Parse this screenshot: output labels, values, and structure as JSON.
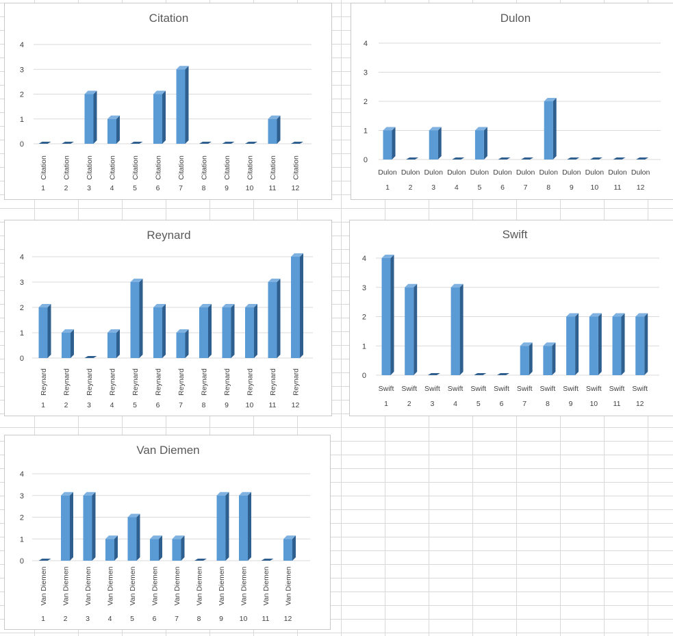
{
  "colors": {
    "bar_front": "#5b9bd5",
    "bar_side": "#2e5f8e",
    "bar_top": "#7fb2e0",
    "gridline": "#d9d9d9",
    "text": "#404040"
  },
  "chart_data": [
    {
      "type": "bar",
      "title": "Citation",
      "series_label": "Citation",
      "categories": [
        "1",
        "2",
        "3",
        "4",
        "5",
        "6",
        "7",
        "8",
        "9",
        "10",
        "11",
        "12"
      ],
      "values": [
        0,
        0,
        2,
        1,
        0,
        2,
        3,
        0,
        0,
        0,
        1,
        0
      ],
      "ylim": [
        0,
        4
      ],
      "yticks": [
        0,
        1,
        2,
        3,
        4
      ],
      "grid": true,
      "label_rotation": "vertical"
    },
    {
      "type": "bar",
      "title": "Dulon",
      "series_label": "Dulon",
      "categories": [
        "1",
        "2",
        "3",
        "4",
        "5",
        "6",
        "7",
        "8",
        "9",
        "10",
        "11",
        "12"
      ],
      "values": [
        1,
        0,
        1,
        0,
        1,
        0,
        0,
        2,
        0,
        0,
        0,
        0
      ],
      "ylim": [
        0,
        4
      ],
      "yticks": [
        0,
        1,
        2,
        3,
        4
      ],
      "grid": true,
      "label_rotation": "horizontal"
    },
    {
      "type": "bar",
      "title": "Reynard",
      "series_label": "Reynard",
      "categories": [
        "1",
        "2",
        "3",
        "4",
        "5",
        "6",
        "7",
        "8",
        "9",
        "10",
        "11",
        "12"
      ],
      "values": [
        2,
        1,
        0,
        1,
        3,
        2,
        1,
        2,
        2,
        2,
        3,
        4
      ],
      "ylim": [
        0,
        4
      ],
      "yticks": [
        0,
        1,
        2,
        3,
        4
      ],
      "grid": true,
      "label_rotation": "vertical"
    },
    {
      "type": "bar",
      "title": "Swift",
      "series_label": "Swift",
      "categories": [
        "1",
        "2",
        "3",
        "4",
        "5",
        "6",
        "7",
        "8",
        "9",
        "10",
        "11",
        "12"
      ],
      "values": [
        4,
        3,
        0,
        3,
        0,
        0,
        1,
        1,
        2,
        2,
        2,
        2
      ],
      "ylim": [
        0,
        4
      ],
      "yticks": [
        0,
        1,
        2,
        3,
        4
      ],
      "grid": true,
      "label_rotation": "horizontal"
    },
    {
      "type": "bar",
      "title": "Van Diemen",
      "series_label": "Van Diemen",
      "categories": [
        "1",
        "2",
        "3",
        "4",
        "5",
        "6",
        "7",
        "8",
        "9",
        "10",
        "11",
        "12"
      ],
      "values": [
        0,
        3,
        3,
        1,
        2,
        1,
        1,
        0,
        3,
        3,
        0,
        1
      ],
      "ylim": [
        0,
        4
      ],
      "yticks": [
        0,
        1,
        2,
        3,
        4
      ],
      "grid": true,
      "label_rotation": "vertical"
    }
  ]
}
